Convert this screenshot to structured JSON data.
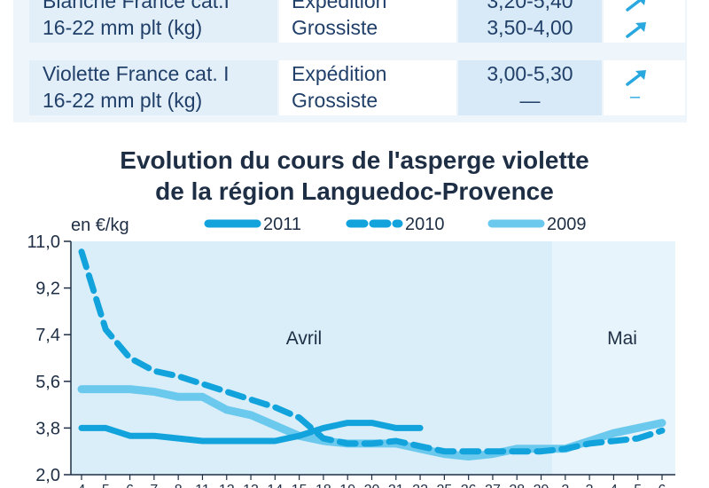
{
  "table": {
    "rows": [
      {
        "product": [
          "Blanche France cat.I",
          "16-22 mm plt (kg)"
        ],
        "stages": [
          "Expédition",
          "Grossiste"
        ],
        "prices": [
          "3,20-5,40",
          "3,50-4,00"
        ],
        "trends": [
          "up",
          "up"
        ]
      },
      {
        "product": [
          "Violette France cat. I",
          "16-22 mm plt (kg)"
        ],
        "stages": [
          "Expédition",
          "Grossiste"
        ],
        "prices": [
          "3,00-5,30",
          "—"
        ],
        "trends": [
          "up",
          "flat"
        ]
      }
    ],
    "colors": {
      "trend_arrow": "#29a8e0",
      "product_bg": "#e2eff9",
      "price_bg": "#d8eaf7"
    }
  },
  "chart_data": {
    "type": "line",
    "title": "Evolution du cours de l'asperge violette",
    "subtitle": "de la région Languedoc-Provence",
    "ylabel": "en €/kg",
    "ylim": [
      2.0,
      11.0
    ],
    "yticks": [
      "11,0",
      "9,2",
      "7,4",
      "5,6",
      "3,8",
      "2,0"
    ],
    "x_tick_labels": [
      "4",
      "5",
      "6",
      "7",
      "8",
      "11",
      "12",
      "13",
      "14",
      "15",
      "18",
      "19",
      "20",
      "21",
      "22",
      "25",
      "26",
      "27",
      "28",
      "29",
      "2",
      "3",
      "4",
      "5",
      "6"
    ],
    "month_labels": [
      "Avril",
      "Mai"
    ],
    "legend": [
      "2011",
      "2010",
      "2009"
    ],
    "series": [
      {
        "name": "2011",
        "color": "#12a3dc",
        "dash": "solid",
        "values": [
          3.8,
          3.8,
          3.5,
          3.5,
          3.4,
          3.3,
          3.3,
          3.3,
          3.3,
          3.5,
          3.8,
          4.0,
          4.0,
          3.8,
          3.8,
          null,
          null,
          null,
          null,
          null,
          null,
          null,
          null,
          null,
          null
        ]
      },
      {
        "name": "2010",
        "color": "#12a3dc",
        "dash": "dashed",
        "values": [
          10.6,
          7.6,
          6.5,
          6.0,
          5.8,
          5.5,
          5.2,
          4.9,
          4.6,
          4.2,
          3.4,
          3.2,
          3.2,
          3.3,
          3.1,
          2.9,
          2.9,
          2.9,
          2.9,
          2.9,
          3.0,
          3.2,
          3.3,
          3.4,
          3.7
        ]
      },
      {
        "name": "2009",
        "color": "#6cc9ee",
        "dash": "solid",
        "values": [
          5.3,
          5.3,
          5.3,
          5.2,
          5.0,
          5.0,
          4.5,
          4.3,
          3.9,
          3.5,
          3.3,
          3.2,
          3.2,
          3.2,
          3.0,
          2.8,
          2.7,
          2.8,
          3.0,
          3.0,
          3.0,
          3.3,
          3.6,
          3.8,
          4.0
        ]
      }
    ],
    "colors": {
      "plot_bg_april": "#d9eef9",
      "plot_bg_may": "#e8f4fb"
    },
    "grid": false,
    "legend_position": "top"
  }
}
